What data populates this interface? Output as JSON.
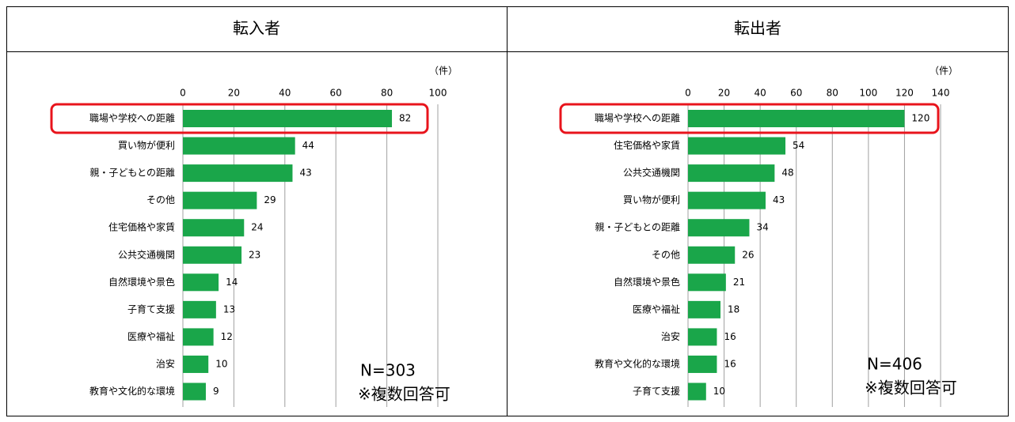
{
  "chart_data": [
    {
      "type": "bar",
      "orientation": "horizontal",
      "title": "転入者",
      "unit_label": "（件）",
      "categories": [
        "職場や学校への距離",
        "買い物が便利",
        "親・子どもとの距離",
        "その他",
        "住宅価格や家賃",
        "公共交通機関",
        "自然環境や景色",
        "子育て支援",
        "医療や福祉",
        "治安",
        "教育や文化的な環境"
      ],
      "values": [
        82,
        44,
        43,
        29,
        24,
        23,
        14,
        13,
        12,
        10,
        9
      ],
      "color": "#1aa64a",
      "xlim": [
        0,
        100
      ],
      "xticks": [
        0,
        20,
        40,
        60,
        80,
        100
      ],
      "grid": true,
      "annotations": [
        "N=303",
        "※複数回答可"
      ]
    },
    {
      "type": "bar",
      "orientation": "horizontal",
      "title": "転出者",
      "unit_label": "（件）",
      "categories": [
        "職場や学校への距離",
        "住宅価格や家賃",
        "公共交通機関",
        "買い物が便利",
        "親・子どもとの距離",
        "その他",
        "自然環境や景色",
        "医療や福祉",
        "治安",
        "教育や文化的な環境",
        "子育て支援"
      ],
      "values": [
        120,
        54,
        48,
        43,
        34,
        26,
        21,
        18,
        16,
        16,
        10
      ],
      "color": "#1aa64a",
      "xlim": [
        0,
        140
      ],
      "xticks": [
        0,
        20,
        40,
        60,
        80,
        100,
        120,
        140
      ],
      "grid": true,
      "annotations": [
        "N=406",
        "※複数回答可"
      ]
    }
  ]
}
